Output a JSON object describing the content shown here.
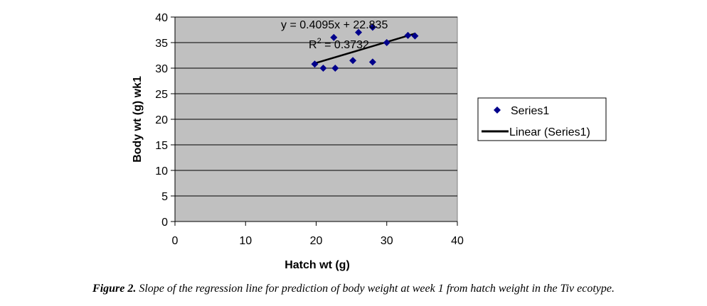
{
  "chart_data": {
    "type": "scatter",
    "title": "",
    "xlabel": "Hatch wt (g)",
    "ylabel": "Body wt (g) wk1",
    "xlim": [
      0,
      40
    ],
    "ylim": [
      0,
      40
    ],
    "xticks": [
      0,
      10,
      20,
      30,
      40
    ],
    "yticks": [
      0,
      5,
      10,
      15,
      20,
      25,
      30,
      35,
      40
    ],
    "grid": "horizontal",
    "plot_background": "#c0c0c0",
    "series": [
      {
        "name": "Series1",
        "marker": "diamond",
        "color": "#00008b",
        "points": [
          {
            "x": 19.8,
            "y": 30.8
          },
          {
            "x": 21.0,
            "y": 30.0
          },
          {
            "x": 22.5,
            "y": 36.0
          },
          {
            "x": 22.7,
            "y": 30.0
          },
          {
            "x": 25.2,
            "y": 31.5
          },
          {
            "x": 26.0,
            "y": 37.0
          },
          {
            "x": 28.0,
            "y": 38.0
          },
          {
            "x": 28.0,
            "y": 31.2
          },
          {
            "x": 30.0,
            "y": 35.0
          },
          {
            "x": 33.0,
            "y": 36.4
          },
          {
            "x": 34.0,
            "y": 36.3
          }
        ]
      }
    ],
    "trendline": {
      "name": "Linear (Series1)",
      "slope": 0.4095,
      "intercept": 22.835,
      "x_range": [
        19.8,
        34.0
      ],
      "color": "#000000"
    },
    "annotations": {
      "equation": "y = 0.4095x + 22.835",
      "r2_prefix": "R",
      "r2_sup": "2",
      "r2_value": " = 0.3732"
    },
    "legend": {
      "position": "right",
      "entries": [
        "Series1",
        "Linear (Series1)"
      ]
    }
  },
  "caption": {
    "label": "Figure 2.",
    "text": " Slope of the regression line for prediction of body weight at week 1 from hatch weight in the Tiv ecotype."
  }
}
